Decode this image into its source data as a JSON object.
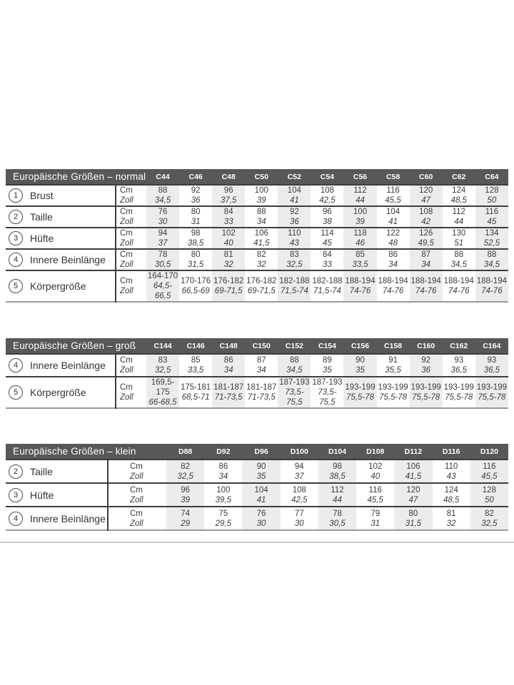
{
  "colors": {
    "header_bg": "#58585a",
    "band": "#ececec",
    "rule": "#3d3d3d",
    "divider": "#c8c8c8"
  },
  "units": {
    "cm": "Cm",
    "zoll": "Zoll"
  },
  "tables": [
    {
      "title": "Europäische Größen – normal",
      "columns": [
        "C44",
        "C46",
        "C48",
        "C50",
        "C52",
        "C54",
        "C56",
        "C58",
        "C60",
        "C62",
        "C64"
      ],
      "rows": [
        {
          "num": "1",
          "label": "Brust",
          "cm": [
            "88",
            "92",
            "96",
            "100",
            "104",
            "108",
            "112",
            "116",
            "120",
            "124",
            "128"
          ],
          "zoll": [
            "34,5",
            "36",
            "37,5",
            "39",
            "41",
            "42,5",
            "44",
            "45,5",
            "47",
            "48,5",
            "50"
          ]
        },
        {
          "num": "2",
          "label": "Taille",
          "cm": [
            "76",
            "80",
            "84",
            "88",
            "92",
            "96",
            "100",
            "104",
            "108",
            "112",
            "116"
          ],
          "zoll": [
            "30",
            "31",
            "33",
            "34",
            "36",
            "38",
            "39",
            "41",
            "42",
            "44",
            "45"
          ]
        },
        {
          "num": "3",
          "label": "Hüfte",
          "cm": [
            "94",
            "98",
            "102",
            "106",
            "110",
            "114",
            "118",
            "122",
            "126",
            "130",
            "134"
          ],
          "zoll": [
            "37",
            "38,5",
            "40",
            "41,5",
            "43",
            "45",
            "46",
            "48",
            "49,5",
            "51",
            "52,5"
          ]
        },
        {
          "num": "4",
          "label": "Innere Beinlänge",
          "cm": [
            "78",
            "80",
            "81",
            "82",
            "83",
            "84",
            "85",
            "86",
            "87",
            "88",
            "88"
          ],
          "zoll": [
            "30,5",
            "31,5",
            "32",
            "32",
            "32,5",
            "33",
            "33,5",
            "34",
            "34",
            "34,5",
            "34,5"
          ]
        },
        {
          "num": "5",
          "label": "Körpergröße",
          "cm": [
            "164-170",
            "170-176",
            "176-182",
            "176-182",
            "182-188",
            "182-188",
            "188-194",
            "188-194",
            "188-194",
            "188-194",
            "188-194"
          ],
          "zoll": [
            "64,5-66,5",
            "66,5-69",
            "69-71,5",
            "69-71,5",
            "71,5-74",
            "71,5-74",
            "74-76",
            "74-76",
            "74-76",
            "74-76",
            "74-76"
          ]
        }
      ]
    },
    {
      "title": "Europäische Größen – groß",
      "columns": [
        "C144",
        "C146",
        "C148",
        "C150",
        "C152",
        "C154",
        "C156",
        "C158",
        "C160",
        "C162",
        "C164"
      ],
      "rows": [
        {
          "num": "4",
          "label": "Innere Beinlänge",
          "cm": [
            "83",
            "85",
            "86",
            "87",
            "88",
            "89",
            "90",
            "91",
            "92",
            "93",
            "93"
          ],
          "zoll": [
            "32,5",
            "33,5",
            "34",
            "34",
            "34,5",
            "35",
            "35",
            "35,5",
            "36",
            "36,5",
            "36,5"
          ]
        },
        {
          "num": "5",
          "label": "Körpergröße",
          "cm": [
            "169,5-175",
            "175-181",
            "181-187",
            "181-187",
            "187-193",
            "187-193",
            "193-199",
            "193-199",
            "193-199",
            "193-199",
            "193-199"
          ],
          "zoll": [
            "66-68,5",
            "68,5-71",
            "71-73,5",
            "71-73,5",
            "73,5-75,5",
            "73,5-75,5",
            "75,5-78",
            "75,5-78",
            "75,5-78",
            "75,5-78",
            "75,5-78"
          ]
        }
      ]
    },
    {
      "title": "Europäische Größen – klein",
      "columns": [
        "D88",
        "D92",
        "D96",
        "D100",
        "D104",
        "D108",
        "D112",
        "D116",
        "D120"
      ],
      "rows": [
        {
          "num": "2",
          "label": "Taille",
          "cm": [
            "82",
            "86",
            "90",
            "94",
            "98",
            "102",
            "106",
            "110",
            "116"
          ],
          "zoll": [
            "32,5",
            "34",
            "35",
            "37",
            "38,5",
            "40",
            "41,5",
            "43",
            "45,5"
          ]
        },
        {
          "num": "3",
          "label": "Hüfte",
          "cm": [
            "96",
            "100",
            "104",
            "108",
            "112",
            "116",
            "120",
            "124",
            "128"
          ],
          "zoll": [
            "39",
            "39,5",
            "41",
            "42,5",
            "44",
            "45,5",
            "47",
            "48,5",
            "50"
          ]
        },
        {
          "num": "4",
          "label": "Innere Beinlänge",
          "cm": [
            "74",
            "75",
            "76",
            "77",
            "78",
            "79",
            "80",
            "81",
            "82"
          ],
          "zoll": [
            "29",
            "29,5",
            "30",
            "30",
            "30,5",
            "31",
            "31,5",
            "32",
            "32,5"
          ]
        }
      ]
    }
  ]
}
